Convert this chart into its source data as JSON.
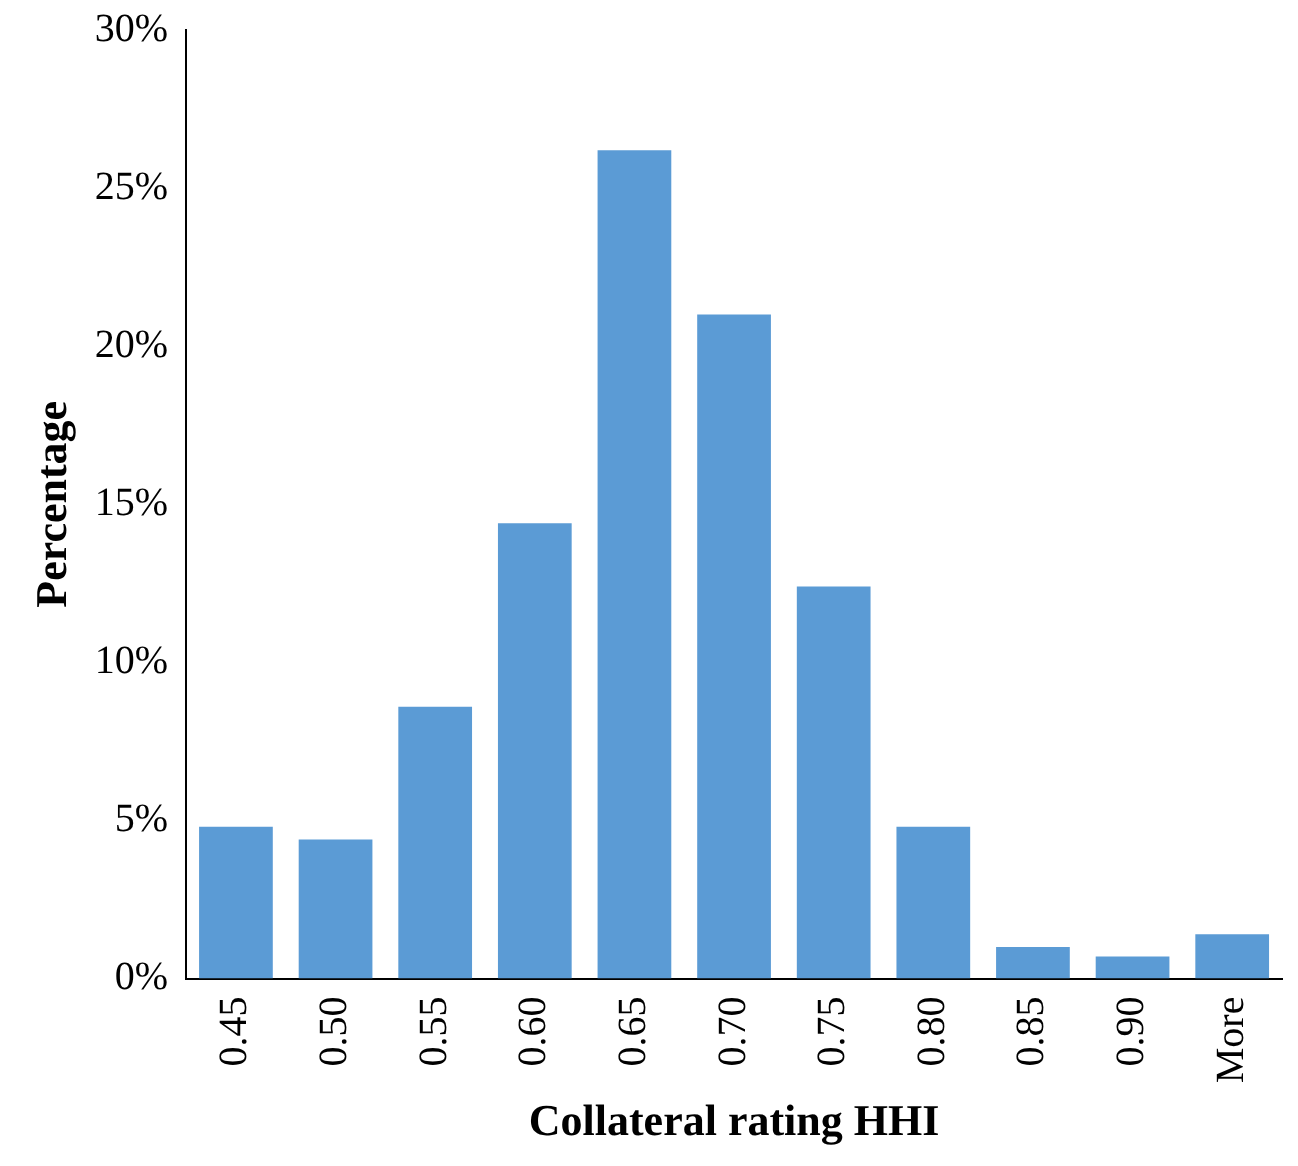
{
  "chart_data": {
    "type": "bar",
    "xlabel": "Collateral rating HHI",
    "ylabel": "Percentage",
    "categories": [
      "0.45",
      "0.50",
      "0.55",
      "0.60",
      "0.65",
      "0.70",
      "0.75",
      "0.80",
      "0.85",
      "0.90",
      "More"
    ],
    "values": [
      4.8,
      4.4,
      8.6,
      14.4,
      26.2,
      21.0,
      12.4,
      4.8,
      1.0,
      0.7,
      1.4
    ],
    "color": "#5b9bd5",
    "ylim": [
      0,
      30
    ],
    "yticks": [
      {
        "value": 0,
        "label": "0%"
      },
      {
        "value": 5,
        "label": "5%"
      },
      {
        "value": 10,
        "label": "10%"
      },
      {
        "value": 15,
        "label": "15%"
      },
      {
        "value": 20,
        "label": "20%"
      },
      {
        "value": 25,
        "label": "25%"
      },
      {
        "value": 30,
        "label": "30%"
      }
    ],
    "grid": false,
    "legend": false
  }
}
